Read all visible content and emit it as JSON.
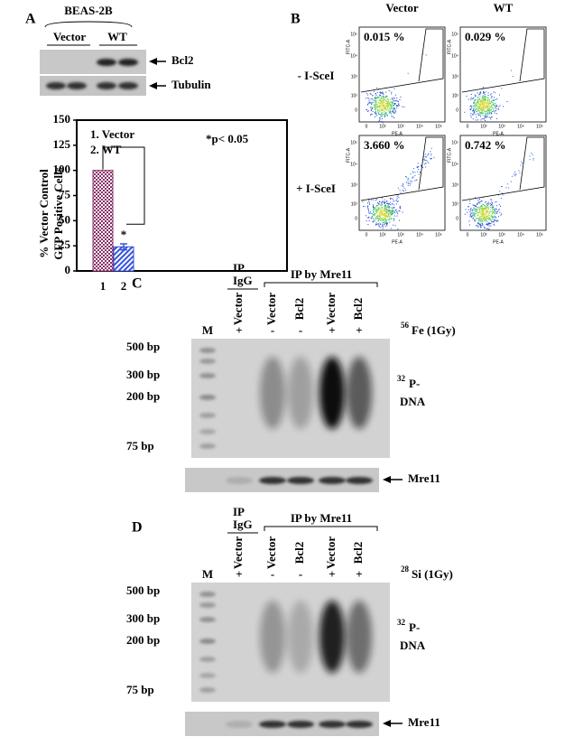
{
  "panel_a": {
    "label": "A",
    "cell_line": "BEAS-2B",
    "lanes": [
      "Vector",
      "WT"
    ],
    "blots": [
      "Bcl2",
      "Tubulin"
    ]
  },
  "chart_data": {
    "type": "bar",
    "ylabel": [
      "% Vector Control",
      "GFP Positive Cells"
    ],
    "categories": [
      "1",
      "2"
    ],
    "values": [
      100,
      24
    ],
    "errors": [
      null,
      3
    ],
    "colors": [
      "#8a2f66",
      "#3553d8"
    ],
    "legend": [
      "1. Vector",
      "2. WT"
    ],
    "annotation": "*p< 0.05",
    "significance": "*",
    "ylim": [
      0,
      150
    ],
    "yticks": [
      0,
      25,
      50,
      75,
      100,
      125,
      150
    ]
  },
  "panel_b": {
    "label": "B",
    "columns": [
      "Vector",
      "WT"
    ],
    "rows": [
      "- I-SceI",
      "+ I-SceI"
    ],
    "percentages": [
      [
        "0.015 %",
        "0.029 %"
      ],
      [
        "3.660 %",
        "0.742 %"
      ]
    ],
    "y_axis": "FITC-A",
    "x_axis": "PE-A",
    "ticks": [
      "0",
      "10²",
      "10³",
      "10⁴",
      "10⁵"
    ]
  },
  "panel_c": {
    "label": "C",
    "ip_igg": [
      "IP",
      "IgG"
    ],
    "ip_mre11": "IP by Mre11",
    "marker": "M",
    "lanes": [
      "Vector",
      "Vector",
      "Bcl2",
      "Vector",
      "Bcl2"
    ],
    "signs": [
      "+",
      "-",
      "-",
      "+",
      "+"
    ],
    "isotope_mass": "56",
    "treatment": "Fe (1Gy)",
    "sizes": [
      "500 bp",
      "300 bp",
      "200 bp",
      "75 bp"
    ],
    "probe_mass": "32",
    "probe": [
      "P-",
      "DNA"
    ],
    "blot": "Mre11"
  },
  "panel_d": {
    "label": "D",
    "ip_igg": [
      "IP",
      "IgG"
    ],
    "ip_mre11": "IP by Mre11",
    "marker": "M",
    "lanes": [
      "Vector",
      "Vector",
      "Bcl2",
      "Vector",
      "Bcl2"
    ],
    "signs": [
      "+",
      "-",
      "-",
      "+",
      "+"
    ],
    "isotope_mass": "28",
    "treatment": "Si (1Gy)",
    "sizes": [
      "500 bp",
      "300 bp",
      "200 bp",
      "75 bp"
    ],
    "probe_mass": "32",
    "probe": [
      "P-",
      "DNA"
    ],
    "blot": "Mre11"
  }
}
